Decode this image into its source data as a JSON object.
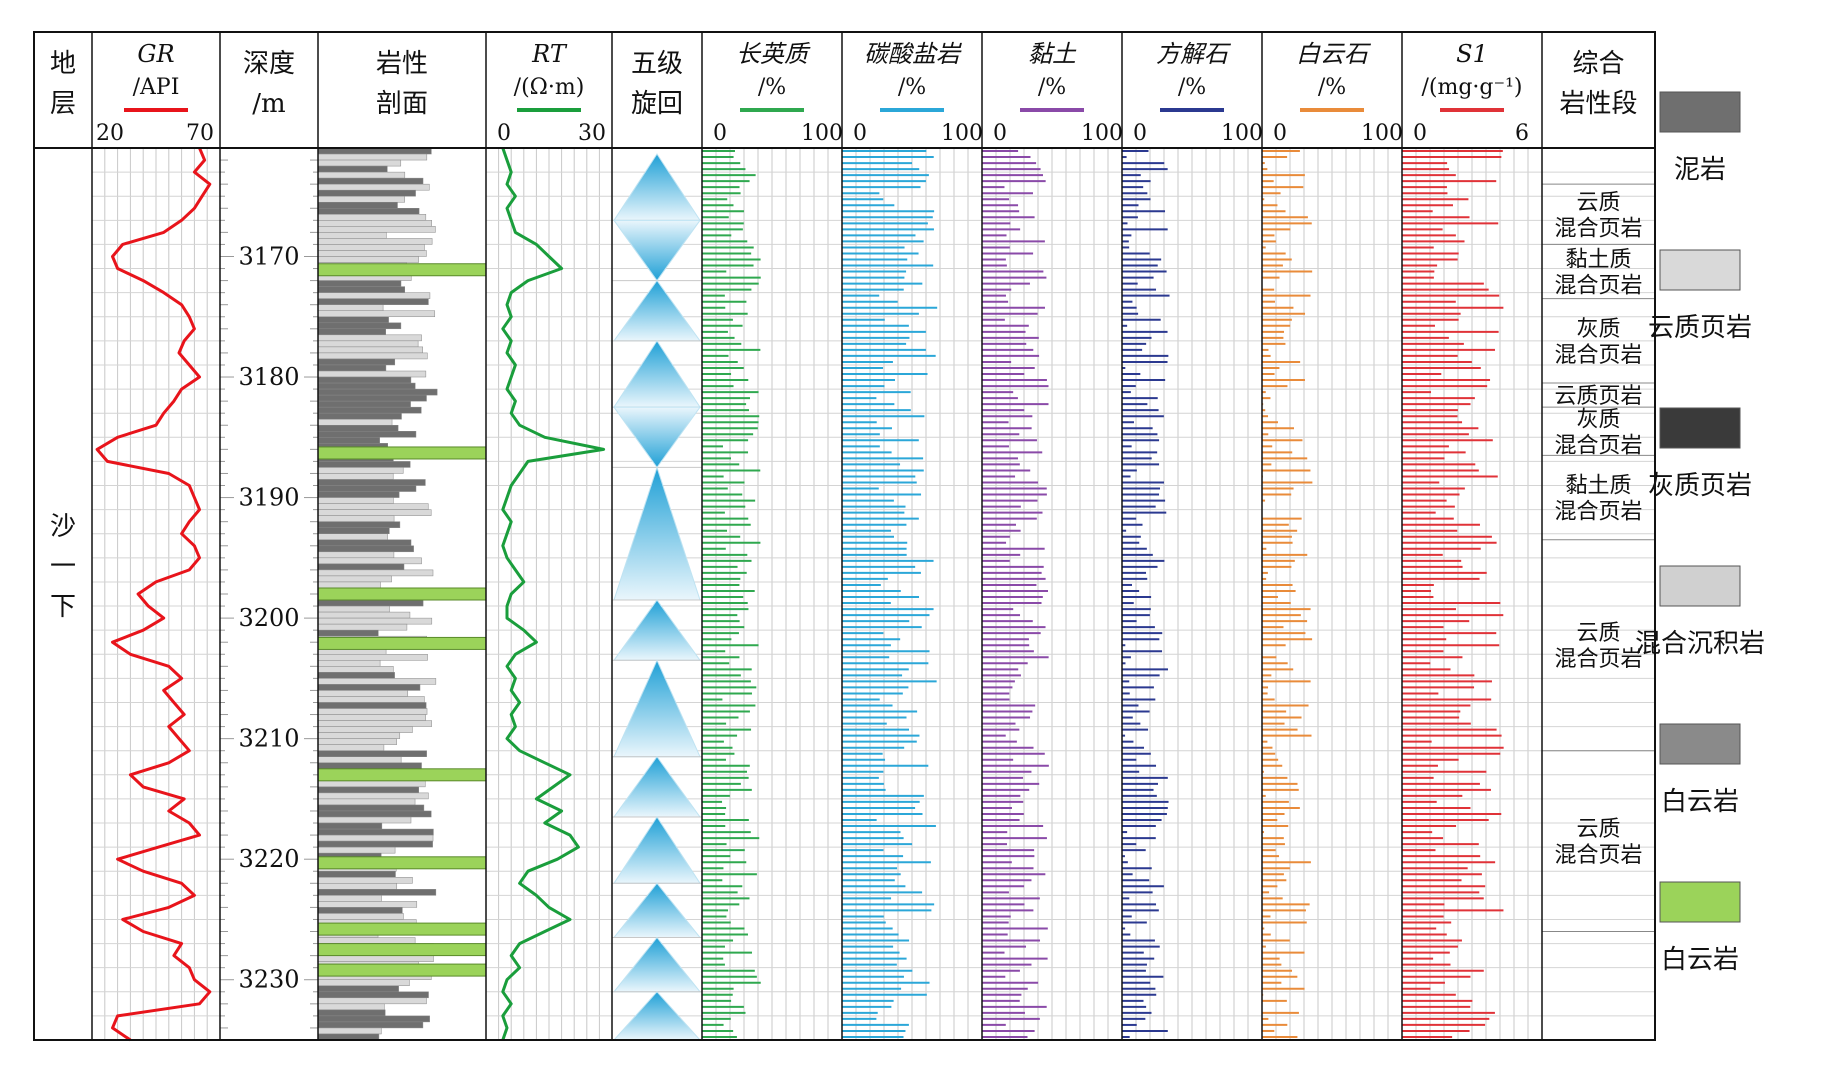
{
  "chart_data": {
    "type": "well-log",
    "depth": {
      "header_line1": "深度",
      "header_line2": "/m",
      "range": [
        3161,
        3235
      ],
      "ticks": [
        3170,
        3180,
        3190,
        3200,
        3210,
        3220,
        3230
      ]
    },
    "strata": {
      "header_line1": "地",
      "header_line2": "层",
      "units": [
        {
          "label": [
            "沙",
            "一",
            "下"
          ],
          "top": 3161,
          "bottom": 3235
        }
      ]
    },
    "lithology_column": {
      "header_line1": "岩性",
      "header_line2": "剖面",
      "dolomite_layers": [
        3171.1,
        3186.3,
        3198.0,
        3202.1,
        3213.0,
        3220.3,
        3225.8,
        3227.5,
        3229.2
      ]
    },
    "cycles": {
      "header_line1": "五级",
      "header_line2": "旋回",
      "segments": [
        {
          "top": 3161.5,
          "bottom": 3167,
          "dir": "up"
        },
        {
          "top": 3167,
          "bottom": 3172,
          "dir": "down"
        },
        {
          "top": 3172,
          "bottom": 3177,
          "dir": "up"
        },
        {
          "top": 3177,
          "bottom": 3182.5,
          "dir": "up"
        },
        {
          "top": 3182.5,
          "bottom": 3187.5,
          "dir": "down"
        },
        {
          "top": 3187.5,
          "bottom": 3198.5,
          "dir": "up"
        },
        {
          "top": 3198.5,
          "bottom": 3203.5,
          "dir": "up"
        },
        {
          "top": 3203.5,
          "bottom": 3211.5,
          "dir": "up"
        },
        {
          "top": 3211.5,
          "bottom": 3216.5,
          "dir": "up"
        },
        {
          "top": 3216.5,
          "bottom": 3222,
          "dir": "up"
        },
        {
          "top": 3222,
          "bottom": 3226.5,
          "dir": "up"
        },
        {
          "top": 3226.5,
          "bottom": 3231,
          "dir": "up"
        },
        {
          "top": 3231,
          "bottom": 3235,
          "dir": "up"
        }
      ]
    },
    "curves": [
      {
        "name": "GR",
        "header_line1": "GR",
        "header_line2": "/API",
        "min": 20,
        "max": 70,
        "tick_min": "20",
        "tick_max": "70",
        "color": "#e8141b",
        "points": [
          [
            3161,
            62
          ],
          [
            3162,
            64
          ],
          [
            3163,
            60
          ],
          [
            3164,
            66
          ],
          [
            3165,
            63
          ],
          [
            3166,
            60
          ],
          [
            3167,
            55
          ],
          [
            3168,
            48
          ],
          [
            3169,
            32
          ],
          [
            3170,
            28
          ],
          [
            3171,
            30
          ],
          [
            3172,
            40
          ],
          [
            3173,
            48
          ],
          [
            3174,
            55
          ],
          [
            3175,
            58
          ],
          [
            3176,
            60
          ],
          [
            3177,
            56
          ],
          [
            3178,
            54
          ],
          [
            3179,
            58
          ],
          [
            3180,
            62
          ],
          [
            3181,
            55
          ],
          [
            3182,
            52
          ],
          [
            3183,
            48
          ],
          [
            3184,
            45
          ],
          [
            3185,
            30
          ],
          [
            3186,
            22
          ],
          [
            3187,
            26
          ],
          [
            3188,
            50
          ],
          [
            3189,
            58
          ],
          [
            3190,
            60
          ],
          [
            3191,
            62
          ],
          [
            3192,
            58
          ],
          [
            3193,
            55
          ],
          [
            3194,
            60
          ],
          [
            3195,
            62
          ],
          [
            3196,
            58
          ],
          [
            3197,
            45
          ],
          [
            3198,
            38
          ],
          [
            3199,
            42
          ],
          [
            3200,
            48
          ],
          [
            3201,
            40
          ],
          [
            3202,
            28
          ],
          [
            3203,
            35
          ],
          [
            3204,
            50
          ],
          [
            3205,
            55
          ],
          [
            3206,
            48
          ],
          [
            3207,
            52
          ],
          [
            3208,
            56
          ],
          [
            3209,
            50
          ],
          [
            3210,
            54
          ],
          [
            3211,
            58
          ],
          [
            3212,
            50
          ],
          [
            3213,
            35
          ],
          [
            3214,
            40
          ],
          [
            3215,
            56
          ],
          [
            3216,
            50
          ],
          [
            3217,
            58
          ],
          [
            3218,
            62
          ],
          [
            3219,
            46
          ],
          [
            3220,
            30
          ],
          [
            3221,
            40
          ],
          [
            3222,
            55
          ],
          [
            3223,
            60
          ],
          [
            3224,
            50
          ],
          [
            3225,
            32
          ],
          [
            3226,
            40
          ],
          [
            3227,
            55
          ],
          [
            3228,
            52
          ],
          [
            3229,
            58
          ],
          [
            3230,
            60
          ],
          [
            3231,
            66
          ],
          [
            3232,
            62
          ],
          [
            3233,
            30
          ],
          [
            3234,
            28
          ],
          [
            3235,
            35
          ]
        ]
      },
      {
        "name": "RT",
        "header_line1": "RT",
        "header_line2": "/(Ω·m)",
        "min": 0,
        "max": 30,
        "tick_min": "0",
        "tick_max": "30",
        "color": "#1a9e3c",
        "points": [
          [
            3161,
            4
          ],
          [
            3162,
            5
          ],
          [
            3163,
            6
          ],
          [
            3164,
            5
          ],
          [
            3165,
            7
          ],
          [
            3166,
            5
          ],
          [
            3167,
            6
          ],
          [
            3168,
            7
          ],
          [
            3169,
            12
          ],
          [
            3170,
            15
          ],
          [
            3171,
            18
          ],
          [
            3172,
            10
          ],
          [
            3173,
            6
          ],
          [
            3174,
            5
          ],
          [
            3175,
            6
          ],
          [
            3176,
            4
          ],
          [
            3177,
            6
          ],
          [
            3178,
            5
          ],
          [
            3179,
            7
          ],
          [
            3180,
            6
          ],
          [
            3181,
            5
          ],
          [
            3182,
            7
          ],
          [
            3183,
            6
          ],
          [
            3184,
            8
          ],
          [
            3185,
            14
          ],
          [
            3186,
            28
          ],
          [
            3187,
            10
          ],
          [
            3188,
            8
          ],
          [
            3189,
            6
          ],
          [
            3190,
            5
          ],
          [
            3191,
            4
          ],
          [
            3192,
            6
          ],
          [
            3193,
            5
          ],
          [
            3194,
            4
          ],
          [
            3195,
            5
          ],
          [
            3196,
            7
          ],
          [
            3197,
            9
          ],
          [
            3198,
            6
          ],
          [
            3199,
            5
          ],
          [
            3200,
            5
          ],
          [
            3201,
            9
          ],
          [
            3202,
            12
          ],
          [
            3203,
            7
          ],
          [
            3204,
            5
          ],
          [
            3205,
            7
          ],
          [
            3206,
            6
          ],
          [
            3207,
            8
          ],
          [
            3208,
            6
          ],
          [
            3209,
            7
          ],
          [
            3210,
            5
          ],
          [
            3211,
            8
          ],
          [
            3212,
            14
          ],
          [
            3213,
            20
          ],
          [
            3214,
            16
          ],
          [
            3215,
            12
          ],
          [
            3216,
            18
          ],
          [
            3217,
            14
          ],
          [
            3218,
            20
          ],
          [
            3219,
            22
          ],
          [
            3220,
            17
          ],
          [
            3221,
            10
          ],
          [
            3222,
            8
          ],
          [
            3223,
            12
          ],
          [
            3224,
            15
          ],
          [
            3225,
            20
          ],
          [
            3226,
            14
          ],
          [
            3227,
            8
          ],
          [
            3228,
            6
          ],
          [
            3229,
            8
          ],
          [
            3230,
            5
          ],
          [
            3231,
            4
          ],
          [
            3232,
            6
          ],
          [
            3233,
            4
          ],
          [
            3234,
            5
          ],
          [
            3235,
            4
          ]
        ]
      }
    ],
    "bar_tracks": [
      {
        "name": "长英质",
        "header_line1": "长英质",
        "header_line2": "/%",
        "min": 0,
        "max": 100,
        "tick_min": "0",
        "tick_max": "100",
        "color": "#2fa84f",
        "base": 28,
        "amp": 14,
        "seed": 3
      },
      {
        "name": "碳酸盐岩",
        "header_line1": "碳酸盐岩",
        "header_line2": "/%",
        "min": 0,
        "max": 100,
        "tick_min": "0",
        "tick_max": "100",
        "color": "#2ba7d8",
        "base": 46,
        "amp": 22,
        "seed": 7
      },
      {
        "name": "黏土",
        "header_line1": "黏土",
        "header_line2": "/%",
        "min": 0,
        "max": 100,
        "tick_min": "0",
        "tick_max": "100",
        "color": "#8a4aa8",
        "base": 32,
        "amp": 16,
        "seed": 11
      },
      {
        "name": "方解石",
        "header_line1": "方解石",
        "header_line2": "/%",
        "min": 0,
        "max": 100,
        "tick_min": "0",
        "tick_max": "100",
        "color": "#2b3990",
        "base": 18,
        "amp": 16,
        "seed": 17
      },
      {
        "name": "白云石",
        "header_line1": "白云石",
        "header_line2": "/%",
        "min": 0,
        "max": 100,
        "tick_min": "0",
        "tick_max": "100",
        "color": "#e98b3a",
        "base": 18,
        "amp": 18,
        "seed": 23
      },
      {
        "name": "S1",
        "header_line1": "S1",
        "header_line2": "/(mg·g⁻¹)",
        "min": 0,
        "max": 6,
        "tick_min": "0",
        "tick_max": "6",
        "color": "#e03238",
        "base": 2.8,
        "amp": 1.6,
        "seed": 29
      }
    ],
    "segments": {
      "header_line1": "综合",
      "header_line2": "岩性段",
      "items": [
        {
          "top": 3161,
          "bottom": 3164,
          "label": []
        },
        {
          "top": 3164,
          "bottom": 3169,
          "label": [
            "云质",
            "混合页岩"
          ]
        },
        {
          "top": 3169,
          "bottom": 3173.5,
          "label": [
            "黏土质",
            "混合页岩"
          ]
        },
        {
          "top": 3173.5,
          "bottom": 3180.5,
          "label": [
            "灰质",
            "混合页岩"
          ]
        },
        {
          "top": 3180.5,
          "bottom": 3182.5,
          "label": [
            "云质页岩"
          ]
        },
        {
          "top": 3182.5,
          "bottom": 3186.5,
          "label": [
            "灰质",
            "混合页岩"
          ]
        },
        {
          "top": 3186.5,
          "bottom": 3193.5,
          "label": [
            "黏土质",
            "混合页岩"
          ]
        },
        {
          "top": 3193.5,
          "bottom": 3211,
          "label": [
            "云质",
            "混合页岩"
          ]
        },
        {
          "top": 3211,
          "bottom": 3226,
          "label": [
            "云质",
            "混合页岩"
          ]
        },
        {
          "top": 3226,
          "bottom": 3235,
          "label": []
        }
      ]
    },
    "legend": [
      {
        "key": "mudstone",
        "label": "泥岩"
      },
      {
        "key": "dolomitic-shale",
        "label": "云质页岩"
      },
      {
        "key": "calcareous-shale",
        "label": "灰质页岩"
      },
      {
        "key": "mixed-sedimentary",
        "label": "混合沉积岩"
      },
      {
        "key": "dolomite-gray",
        "label": "白云岩"
      },
      {
        "key": "dolomite-green",
        "label": "白云岩"
      }
    ]
  }
}
